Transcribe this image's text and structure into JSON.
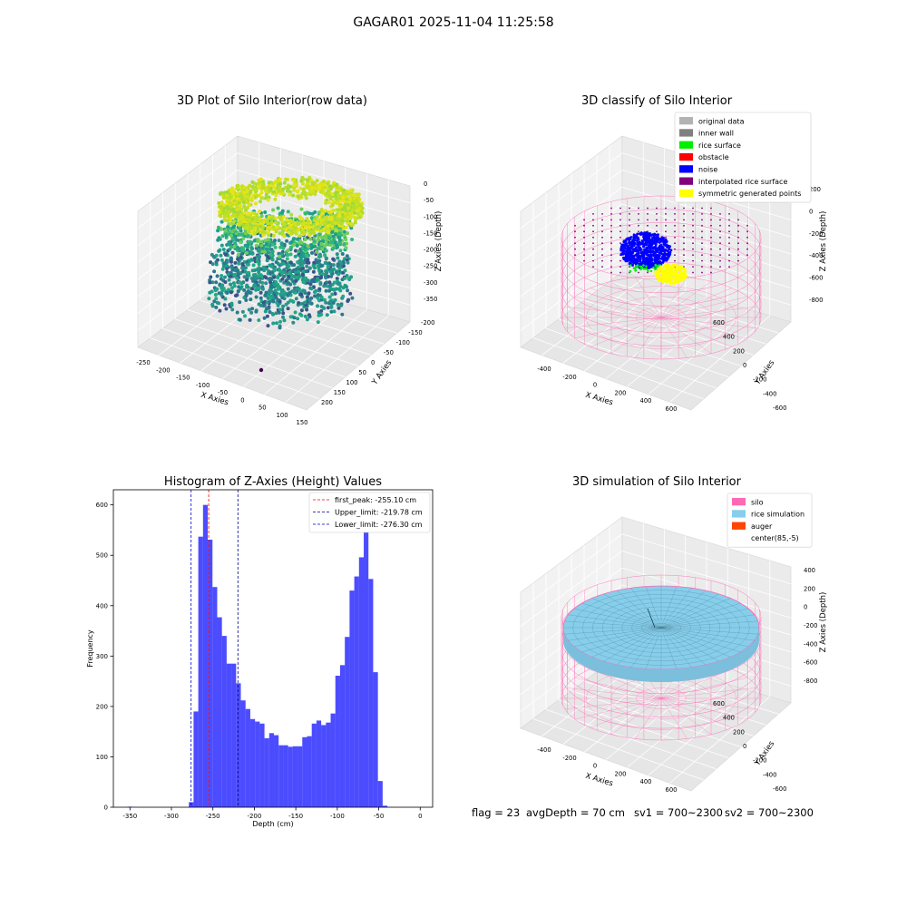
{
  "figure": {
    "suptitle": "GAGAR01 2025-11-04 11:25:58",
    "footer": {
      "flag": "flag = 23",
      "avg_depth": "avgDepth = 70 cm",
      "sv1": "sv1 = 700~2300",
      "sv2": "sv2 = 700~2300"
    }
  },
  "chart_data": [
    {
      "type": "scatter",
      "projection": "3d",
      "title": "3D Plot of Silo Interior(row data)",
      "xlabel": "X Axies",
      "ylabel": "Y Axies",
      "zlabel": "Z Axies (Depth)",
      "xticks": [
        "-250",
        "-200",
        "-150",
        "-100",
        "-50",
        "0",
        "50",
        "100",
        "150"
      ],
      "yticks": [
        "-200",
        "-150",
        "-100",
        "-50",
        "0",
        "50",
        "100",
        "150",
        "200"
      ],
      "zticks": [
        "0",
        "-50",
        "-100",
        "-150",
        "-200",
        "-250",
        "-300",
        "-350"
      ],
      "xlim": [
        -260,
        160
      ],
      "ylim": [
        -220,
        210
      ],
      "zlim": [
        -370,
        10
      ],
      "colormap": "viridis",
      "clusters": [
        {
          "name": "upper ring",
          "depth_range": [
            -130,
            -40
          ],
          "color": "#c9e02a"
        },
        {
          "name": "lower cluster",
          "depth_range": [
            -330,
            -200
          ],
          "color": "#2b8e8c"
        }
      ],
      "outlier": {
        "x": 40,
        "y": -20,
        "z": -350,
        "color": "#440154"
      }
    },
    {
      "type": "scatter",
      "projection": "3d",
      "title": "3D classify of Silo Interior",
      "xlabel": "X Axies",
      "ylabel": "Y Axies",
      "zlabel": "Z Axies (Depth)",
      "xticks": [
        "-400",
        "-200",
        "0",
        "200",
        "400",
        "600"
      ],
      "yticks": [
        "-600",
        "-400",
        "-200",
        "0",
        "200",
        "400",
        "600"
      ],
      "zticks": [
        "200",
        "0",
        "-200",
        "-400",
        "-600",
        "-800"
      ],
      "legend": {
        "location": "upper right",
        "entries": [
          {
            "label": "original data",
            "color": "#b3b3b3"
          },
          {
            "label": "inner wall",
            "color": "#808080"
          },
          {
            "label": "rice surface",
            "color": "#00ee00"
          },
          {
            "label": "obstacle",
            "color": "#ff0000"
          },
          {
            "label": "noise",
            "color": "#0000ff"
          },
          {
            "label": "interpolated rice surface",
            "color": "#800080"
          },
          {
            "label": "symmetric generated points",
            "color": "#ffff00"
          }
        ]
      }
    },
    {
      "type": "bar",
      "title": "Histogram of Z-Axies (Height) Values",
      "xlabel": "Depth (cm)",
      "ylabel": "Frequency",
      "xlim": [
        -370,
        15
      ],
      "ylim": [
        0,
        630
      ],
      "xticks": [
        -350,
        -300,
        -250,
        -200,
        -150,
        -100,
        -50,
        0
      ],
      "yticks": [
        0,
        100,
        200,
        300,
        400,
        500,
        600
      ],
      "bar_color": "#0000ff",
      "bins": [
        {
          "x0": -353.0,
          "x1": -347.3,
          "count": 1
        },
        {
          "x0": -279.0,
          "x1": -273.3,
          "count": 10
        },
        {
          "x0": -273.3,
          "x1": -267.6,
          "count": 190
        },
        {
          "x0": -267.6,
          "x1": -261.9,
          "count": 537
        },
        {
          "x0": -261.9,
          "x1": -256.2,
          "count": 600
        },
        {
          "x0": -256.2,
          "x1": -250.5,
          "count": 531
        },
        {
          "x0": -250.5,
          "x1": -244.8,
          "count": 437
        },
        {
          "x0": -244.8,
          "x1": -239.1,
          "count": 377
        },
        {
          "x0": -239.1,
          "x1": -233.4,
          "count": 340
        },
        {
          "x0": -233.4,
          "x1": -227.7,
          "count": 285
        },
        {
          "x0": -227.7,
          "x1": -222.0,
          "count": 285
        },
        {
          "x0": -222.0,
          "x1": -216.3,
          "count": 246
        },
        {
          "x0": -216.3,
          "x1": -210.6,
          "count": 212
        },
        {
          "x0": -210.6,
          "x1": -204.9,
          "count": 195
        },
        {
          "x0": -204.9,
          "x1": -199.2,
          "count": 175
        },
        {
          "x0": -199.2,
          "x1": -193.5,
          "count": 170
        },
        {
          "x0": -193.5,
          "x1": -187.8,
          "count": 166
        },
        {
          "x0": -187.8,
          "x1": -182.1,
          "count": 137
        },
        {
          "x0": -182.1,
          "x1": -176.4,
          "count": 147
        },
        {
          "x0": -176.4,
          "x1": -170.7,
          "count": 143
        },
        {
          "x0": -170.7,
          "x1": -165.0,
          "count": 123
        },
        {
          "x0": -165.0,
          "x1": -159.3,
          "count": 123
        },
        {
          "x0": -159.3,
          "x1": -153.6,
          "count": 120
        },
        {
          "x0": -153.6,
          "x1": -147.9,
          "count": 121
        },
        {
          "x0": -147.9,
          "x1": -142.2,
          "count": 121
        },
        {
          "x0": -142.2,
          "x1": -136.5,
          "count": 139
        },
        {
          "x0": -136.5,
          "x1": -130.8,
          "count": 141
        },
        {
          "x0": -130.8,
          "x1": -125.1,
          "count": 166
        },
        {
          "x0": -125.1,
          "x1": -119.4,
          "count": 172
        },
        {
          "x0": -119.4,
          "x1": -113.7,
          "count": 163
        },
        {
          "x0": -113.7,
          "x1": -108.0,
          "count": 168
        },
        {
          "x0": -108.0,
          "x1": -102.3,
          "count": 186
        },
        {
          "x0": -102.3,
          "x1": -96.6,
          "count": 261
        },
        {
          "x0": -96.6,
          "x1": -90.9,
          "count": 282
        },
        {
          "x0": -90.9,
          "x1": -85.2,
          "count": 338
        },
        {
          "x0": -85.2,
          "x1": -79.5,
          "count": 430
        },
        {
          "x0": -79.5,
          "x1": -73.8,
          "count": 458
        },
        {
          "x0": -73.8,
          "x1": -68.1,
          "count": 496
        },
        {
          "x0": -68.1,
          "x1": -62.4,
          "count": 580
        },
        {
          "x0": -62.4,
          "x1": -56.7,
          "count": 453
        },
        {
          "x0": -56.7,
          "x1": -51.0,
          "count": 268
        },
        {
          "x0": -51.0,
          "x1": -45.3,
          "count": 52
        },
        {
          "x0": -45.3,
          "x1": -39.6,
          "count": 3
        }
      ],
      "vlines": [
        {
          "label": "first_peak: -255.10 cm",
          "x": -255.1,
          "color": "#ff0000"
        },
        {
          "label": "Upper_limit: -219.78 cm",
          "x": -219.78,
          "color": "#00008b"
        },
        {
          "label": "Lower_limit: -276.30 cm",
          "x": -276.3,
          "color": "#0000cd"
        }
      ],
      "legend_location": "upper right"
    },
    {
      "type": "surface",
      "projection": "3d",
      "title": "3D simulation of Silo Interior",
      "xlabel": "X Axies",
      "ylabel": "Y Axies",
      "zlabel": "Z Axies (Depth)",
      "xticks": [
        "-400",
        "-200",
        "0",
        "200",
        "400",
        "600"
      ],
      "yticks": [
        "-600",
        "-400",
        "-200",
        "0",
        "200",
        "400",
        "600"
      ],
      "zticks": [
        "400",
        "200",
        "0",
        "-200",
        "-400",
        "-600",
        "-800"
      ],
      "legend": {
        "location": "upper right",
        "entries": [
          {
            "label": "silo",
            "color": "#ff69b4"
          },
          {
            "label": "rice simulation",
            "color": "#87ceeb"
          },
          {
            "label": "auger",
            "color": "#ff4500"
          },
          {
            "label": "center(85,-5)",
            "color": "#ffffff"
          }
        ]
      }
    }
  ]
}
